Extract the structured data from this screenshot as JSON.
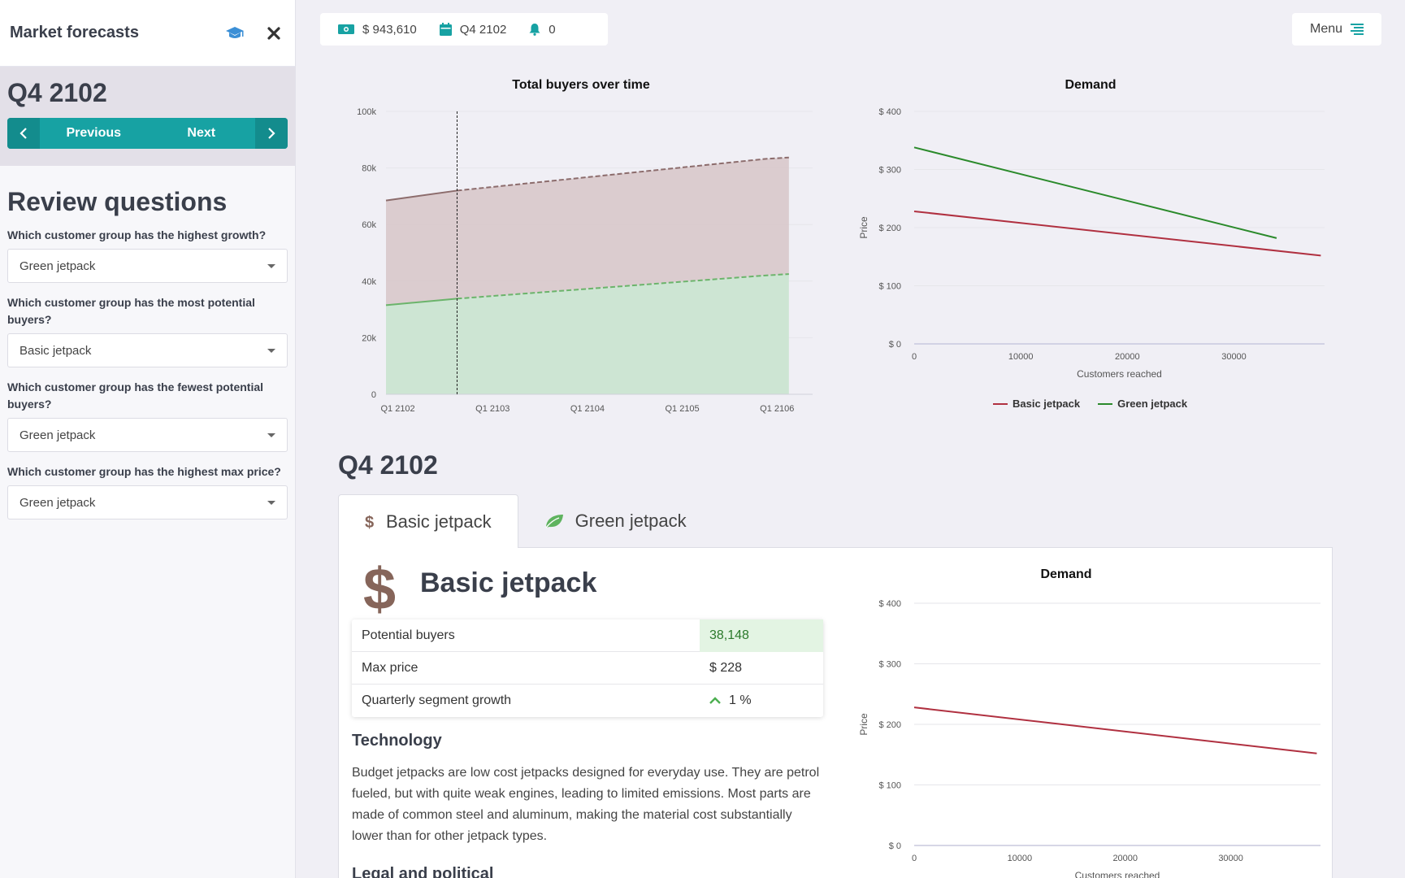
{
  "sidebar": {
    "title": "Market forecasts",
    "period": "Q4 2102",
    "prev_label": "Previous",
    "next_label": "Next",
    "review_title": "Review questions",
    "questions": [
      {
        "label": "Which customer group has the highest growth?",
        "answer": "Green jetpack"
      },
      {
        "label": "Which customer group has the most potential buyers?",
        "answer": "Basic jetpack"
      },
      {
        "label": "Which customer group has the fewest potential buyers?",
        "answer": "Green jetpack"
      },
      {
        "label": "Which customer group has the highest max price?",
        "answer": "Green jetpack"
      }
    ]
  },
  "topbar": {
    "cash": "$ 943,610",
    "period": "Q4 2102",
    "notifications": "0",
    "menu_label": "Menu"
  },
  "section": {
    "title": "Q4 2102",
    "tabs": [
      "Basic jetpack",
      "Green jetpack"
    ],
    "active_tab": "Basic jetpack",
    "panel_title": "Basic jetpack",
    "rows": [
      {
        "key": "Potential buyers",
        "value": "38,148"
      },
      {
        "key": "Max price",
        "value": "$ 228"
      },
      {
        "key": "Quarterly segment growth",
        "value": "1 %"
      }
    ],
    "tech_title": "Technology",
    "tech_text": "Budget jetpacks are low cost jetpacks designed for everyday use. They are petrol fueled, but with quite weak engines, leading to limited emissions. Most parts are made of common steel and aluminum, making the material cost substantially lower than for other jetpack types.",
    "legal_title": "Legal and political"
  },
  "colors": {
    "teal": "#17a2a3",
    "basic": "#b03040",
    "green": "#2b8a2b",
    "basic_area": "#d9c9cc",
    "green_area": "#cde5d3"
  },
  "chart_data": [
    {
      "type": "area",
      "title": "Total buyers over time",
      "x": [
        "Q1 2102",
        "Q4 2102",
        "Q1 2106",
        "Q2 2106"
      ],
      "tick_labels": [
        "Q1 2102",
        "Q1 2103",
        "Q1 2104",
        "Q1 2105",
        "Q1 2106"
      ],
      "series": [
        {
          "values": [
            31500,
            33800,
            42000,
            42500
          ]
        },
        {
          "values": [
            68500,
            72000,
            83200,
            83700
          ]
        }
      ],
      "ylim": [
        0,
        100000
      ],
      "y_ticks": [
        "0",
        "20k",
        "40k",
        "60k",
        "80k",
        "100k"
      ],
      "marker_at": "Q4 2102"
    },
    {
      "type": "line",
      "title": "Demand",
      "xlabel": "Customers reached",
      "ylabel": "Price",
      "x_ticks": [
        "0",
        "10000",
        "20000",
        "30000"
      ],
      "y_ticks": [
        "$ 0",
        "$ 100",
        "$ 200",
        "$ 300",
        "$ 400"
      ],
      "xlim": [
        0,
        38500
      ],
      "ylim": [
        0,
        400
      ],
      "series": [
        {
          "name": "Basic jetpack",
          "points": [
            [
              0,
              228
            ],
            [
              38148,
              152
            ]
          ]
        },
        {
          "name": "Green jetpack",
          "points": [
            [
              0,
              338
            ],
            [
              34000,
              182
            ]
          ]
        }
      ],
      "legend": "bottom"
    },
    {
      "type": "line",
      "title": "Demand",
      "xlabel": "Customers reached",
      "ylabel": "Price",
      "x_ticks": [
        "0",
        "10000",
        "20000",
        "30000"
      ],
      "y_ticks": [
        "$ 0",
        "$ 100",
        "$ 200",
        "$ 300",
        "$ 400"
      ],
      "xlim": [
        0,
        38500
      ],
      "ylim": [
        0,
        400
      ],
      "series": [
        {
          "name": "Basic jetpack",
          "points": [
            [
              0,
              228
            ],
            [
              38148,
              152
            ]
          ]
        }
      ]
    }
  ]
}
